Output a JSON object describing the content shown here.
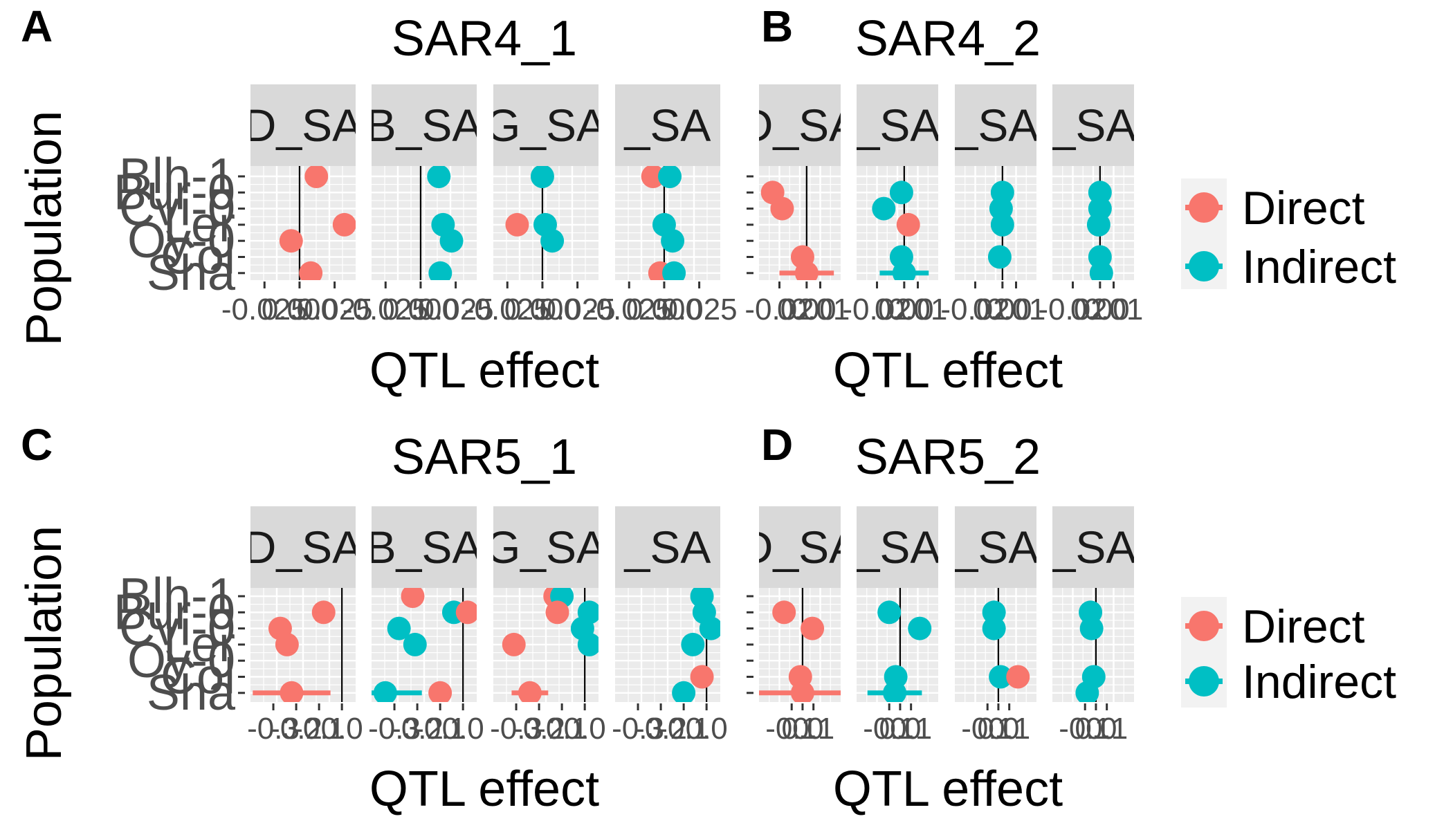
{
  "figure": {
    "population_axis_label": "Population",
    "effect_axis_label": "QTL effect",
    "legend": [
      {
        "label": "Direct",
        "color": "#F8766D"
      },
      {
        "label": "Indirect",
        "color": "#00BFC4"
      }
    ]
  },
  "chart_data": [
    {
      "panel_label": "A",
      "title": "SAR4_1",
      "type": "scatter",
      "xlabel": "QTL effect",
      "ylabel": "Population",
      "xlim": [
        -0.035,
        0.04
      ],
      "x_ticks": [
        "-0.025",
        "0.000",
        "0.025"
      ],
      "y_categories": [
        "Blh-1",
        "Bur-0",
        "Cvi-0",
        "Ler",
        "Oy-0",
        "Col",
        "Sha"
      ],
      "y_tick_text": [
        "Blh-1",
        "Bur-0",
        "Cvi-0",
        "Ler",
        "Oy-0",
        "Col",
        "Sha"
      ],
      "facets": [
        {
          "strip": "D_SA",
          "points": [
            {
              "pop": 0,
              "type": "Direct",
              "x": 0.012,
              "err": 0.002
            },
            {
              "pop": 3,
              "type": "Direct",
              "x": 0.032,
              "err": 0.004
            },
            {
              "pop": 4,
              "type": "Direct",
              "x": -0.006,
              "err": 0.003
            },
            {
              "pop": 6,
              "type": "Direct",
              "x": 0.008,
              "err": 0.007
            }
          ]
        },
        {
          "strip": "B_SA",
          "points": [
            {
              "pop": 0,
              "type": "Indirect",
              "x": 0.013,
              "err": 0.002
            },
            {
              "pop": 3,
              "type": "Indirect",
              "x": 0.016,
              "err": 0.003
            },
            {
              "pop": 4,
              "type": "Indirect",
              "x": 0.022,
              "err": 0.003
            },
            {
              "pop": 6,
              "type": "Indirect",
              "x": 0.014,
              "err": 0.004
            }
          ]
        },
        {
          "strip": "G_SA",
          "points": [
            {
              "pop": 0,
              "type": "Indirect",
              "x": 0.0,
              "err": 0.002
            },
            {
              "pop": 3,
              "type": "Direct",
              "x": -0.018,
              "err": 0.003
            },
            {
              "pop": 3,
              "type": "Indirect",
              "x": 0.002,
              "err": 0.003
            },
            {
              "pop": 4,
              "type": "Indirect",
              "x": 0.007,
              "err": 0.003
            }
          ]
        },
        {
          "strip": "_SA",
          "points": [
            {
              "pop": 0,
              "type": "Direct",
              "x": -0.008,
              "err": 0.002
            },
            {
              "pop": 0,
              "type": "Indirect",
              "x": 0.004,
              "err": 0.002
            },
            {
              "pop": 3,
              "type": "Indirect",
              "x": 0.0,
              "err": 0.003
            },
            {
              "pop": 4,
              "type": "Indirect",
              "x": 0.006,
              "err": 0.003
            },
            {
              "pop": 6,
              "type": "Direct",
              "x": -0.003,
              "err": 0.004
            },
            {
              "pop": 6,
              "type": "Indirect",
              "x": 0.007,
              "err": 0.004
            }
          ]
        }
      ]
    },
    {
      "panel_label": "B",
      "title": "SAR4_2",
      "type": "scatter",
      "xlabel": "QTL effect",
      "ylabel": "",
      "xlim": [
        -0.035,
        0.025
      ],
      "x_ticks": [
        "-0.02",
        "0.00",
        "0.01"
      ],
      "y_categories": [
        "Blh-1",
        "Bur-0",
        "Cvi-0",
        "Ler",
        "Oy-0",
        "Col",
        "Sha"
      ],
      "y_tick_text": [
        "",
        "",
        "",
        "",
        "",
        "",
        ""
      ],
      "facets": [
        {
          "strip": "D_SA",
          "points": [
            {
              "pop": 1,
              "type": "Direct",
              "x": -0.025,
              "err": 0.002
            },
            {
              "pop": 2,
              "type": "Direct",
              "x": -0.018,
              "err": 0.002
            },
            {
              "pop": 5,
              "type": "Direct",
              "x": -0.003,
              "err": 0.003
            },
            {
              "pop": 6,
              "type": "Direct",
              "x": 0.0,
              "err": 0.02
            }
          ]
        },
        {
          "strip": "_SA",
          "points": [
            {
              "pop": 1,
              "type": "Indirect",
              "x": -0.002,
              "err": 0.002
            },
            {
              "pop": 2,
              "type": "Indirect",
              "x": -0.015,
              "err": 0.002
            },
            {
              "pop": 3,
              "type": "Direct",
              "x": 0.003,
              "err": 0.003
            },
            {
              "pop": 5,
              "type": "Indirect",
              "x": -0.002,
              "err": 0.003
            },
            {
              "pop": 6,
              "type": "Indirect",
              "x": 0.0,
              "err": 0.018
            }
          ]
        },
        {
          "strip": "_SA",
          "points": [
            {
              "pop": 1,
              "type": "Indirect",
              "x": 0.0,
              "err": 0.002
            },
            {
              "pop": 2,
              "type": "Indirect",
              "x": -0.001,
              "err": 0.002
            },
            {
              "pop": 3,
              "type": "Indirect",
              "x": 0.0,
              "err": 0.002
            },
            {
              "pop": 5,
              "type": "Indirect",
              "x": -0.002,
              "err": 0.002
            }
          ]
        },
        {
          "strip": "_SA",
          "points": [
            {
              "pop": 1,
              "type": "Indirect",
              "x": 0.0,
              "err": 0.002
            },
            {
              "pop": 2,
              "type": "Indirect",
              "x": 0.0,
              "err": 0.002
            },
            {
              "pop": 3,
              "type": "Indirect",
              "x": -0.001,
              "err": 0.002
            },
            {
              "pop": 5,
              "type": "Indirect",
              "x": 0.0,
              "err": 0.002
            },
            {
              "pop": 6,
              "type": "Indirect",
              "x": 0.001,
              "err": 0.002
            }
          ]
        }
      ]
    },
    {
      "panel_label": "C",
      "title": "SAR5_1",
      "type": "scatter",
      "xlabel": "QTL effect",
      "ylabel": "Population",
      "xlim": [
        -0.4,
        0.06
      ],
      "x_ticks": [
        "-0.3",
        "-0.2",
        "-0.1",
        "0.0"
      ],
      "y_categories": [
        "Blh-1",
        "Bur-0",
        "Cvi-0",
        "Ler",
        "Oy-0",
        "Col",
        "Sha"
      ],
      "y_tick_text": [
        "Blh-1",
        "Bur-0",
        "Cvi-0",
        "Ler",
        "Oy-0",
        "Col",
        "Sha"
      ],
      "facets": [
        {
          "strip": "D_SA",
          "points": [
            {
              "pop": 1,
              "type": "Direct",
              "x": -0.08,
              "err": 0.05
            },
            {
              "pop": 2,
              "type": "Direct",
              "x": -0.27,
              "err": 0.02
            },
            {
              "pop": 3,
              "type": "Direct",
              "x": -0.24,
              "err": 0.05
            },
            {
              "pop": 6,
              "type": "Direct",
              "x": -0.22,
              "err": 0.17
            }
          ]
        },
        {
          "strip": "B_SA",
          "points": [
            {
              "pop": 0,
              "type": "Direct",
              "x": -0.22,
              "err": 0.02
            },
            {
              "pop": 1,
              "type": "Indirect",
              "x": -0.04,
              "err": 0.03
            },
            {
              "pop": 1,
              "type": "Direct",
              "x": 0.02,
              "err": 0.02
            },
            {
              "pop": 2,
              "type": "Indirect",
              "x": -0.28,
              "err": 0.02
            },
            {
              "pop": 3,
              "type": "Indirect",
              "x": -0.21,
              "err": 0.02
            },
            {
              "pop": 6,
              "type": "Indirect",
              "x": -0.34,
              "err": 0.16
            },
            {
              "pop": 6,
              "type": "Direct",
              "x": -0.1,
              "err": 0.04
            }
          ]
        },
        {
          "strip": "G_SA",
          "points": [
            {
              "pop": 0,
              "type": "Direct",
              "x": -0.13,
              "err": 0.05
            },
            {
              "pop": 0,
              "type": "Indirect",
              "x": -0.1,
              "err": 0.04
            },
            {
              "pop": 1,
              "type": "Direct",
              "x": -0.12,
              "err": 0.02
            },
            {
              "pop": 1,
              "type": "Indirect",
              "x": 0.02,
              "err": 0.02
            },
            {
              "pop": 2,
              "type": "Indirect",
              "x": -0.01,
              "err": 0.02
            },
            {
              "pop": 3,
              "type": "Direct",
              "x": -0.31,
              "err": 0.02
            },
            {
              "pop": 3,
              "type": "Indirect",
              "x": 0.02,
              "err": 0.02
            },
            {
              "pop": 6,
              "type": "Direct",
              "x": -0.24,
              "err": 0.08
            }
          ]
        },
        {
          "strip": "_SA",
          "points": [
            {
              "pop": 0,
              "type": "Indirect",
              "x": -0.02,
              "err": 0.01
            },
            {
              "pop": 1,
              "type": "Indirect",
              "x": -0.01,
              "err": 0.01
            },
            {
              "pop": 2,
              "type": "Indirect",
              "x": 0.02,
              "err": 0.01
            },
            {
              "pop": 3,
              "type": "Indirect",
              "x": -0.06,
              "err": 0.01
            },
            {
              "pop": 5,
              "type": "Direct",
              "x": -0.02,
              "err": 0.01
            },
            {
              "pop": 6,
              "type": "Indirect",
              "x": -0.1,
              "err": 0.01
            }
          ]
        }
      ]
    },
    {
      "panel_label": "D",
      "title": "SAR5_2",
      "type": "scatter",
      "xlabel": "QTL effect",
      "ylabel": "",
      "xlim": [
        -0.4,
        0.35
      ],
      "x_ticks": [
        "-0.1",
        "0.0",
        "0.1"
      ],
      "y_categories": [
        "Blh-1",
        "Bur-0",
        "Cvi-0",
        "Ler",
        "Oy-0",
        "Col",
        "Sha"
      ],
      "y_tick_text": [
        "",
        "",
        "",
        "",
        "",
        "",
        ""
      ],
      "facets": [
        {
          "strip": "D_SA",
          "points": [
            {
              "pop": 1,
              "type": "Direct",
              "x": -0.17,
              "err": 0.02
            },
            {
              "pop": 2,
              "type": "Direct",
              "x": 0.09,
              "err": 0.03
            },
            {
              "pop": 5,
              "type": "Direct",
              "x": -0.02,
              "err": 0.03
            },
            {
              "pop": 6,
              "type": "Direct",
              "x": 0.0,
              "err": 0.4
            }
          ]
        },
        {
          "strip": "_SA",
          "points": [
            {
              "pop": 1,
              "type": "Indirect",
              "x": -0.1,
              "err": 0.02
            },
            {
              "pop": 2,
              "type": "Indirect",
              "x": 0.18,
              "err": 0.02
            },
            {
              "pop": 5,
              "type": "Indirect",
              "x": -0.04,
              "err": 0.03
            },
            {
              "pop": 6,
              "type": "Indirect",
              "x": -0.05,
              "err": 0.25
            }
          ]
        },
        {
          "strip": "_SA",
          "points": [
            {
              "pop": 1,
              "type": "Indirect",
              "x": -0.04,
              "err": 0.02
            },
            {
              "pop": 2,
              "type": "Indirect",
              "x": -0.04,
              "err": 0.02
            },
            {
              "pop": 5,
              "type": "Indirect",
              "x": 0.02,
              "err": 0.03
            },
            {
              "pop": 5,
              "type": "Direct",
              "x": 0.18,
              "err": 0.04
            }
          ]
        },
        {
          "strip": "_SA",
          "points": [
            {
              "pop": 1,
              "type": "Indirect",
              "x": -0.05,
              "err": 0.02
            },
            {
              "pop": 2,
              "type": "Indirect",
              "x": -0.04,
              "err": 0.02
            },
            {
              "pop": 5,
              "type": "Indirect",
              "x": -0.02,
              "err": 0.02
            },
            {
              "pop": 6,
              "type": "Indirect",
              "x": -0.08,
              "err": 0.02
            }
          ]
        }
      ]
    }
  ]
}
